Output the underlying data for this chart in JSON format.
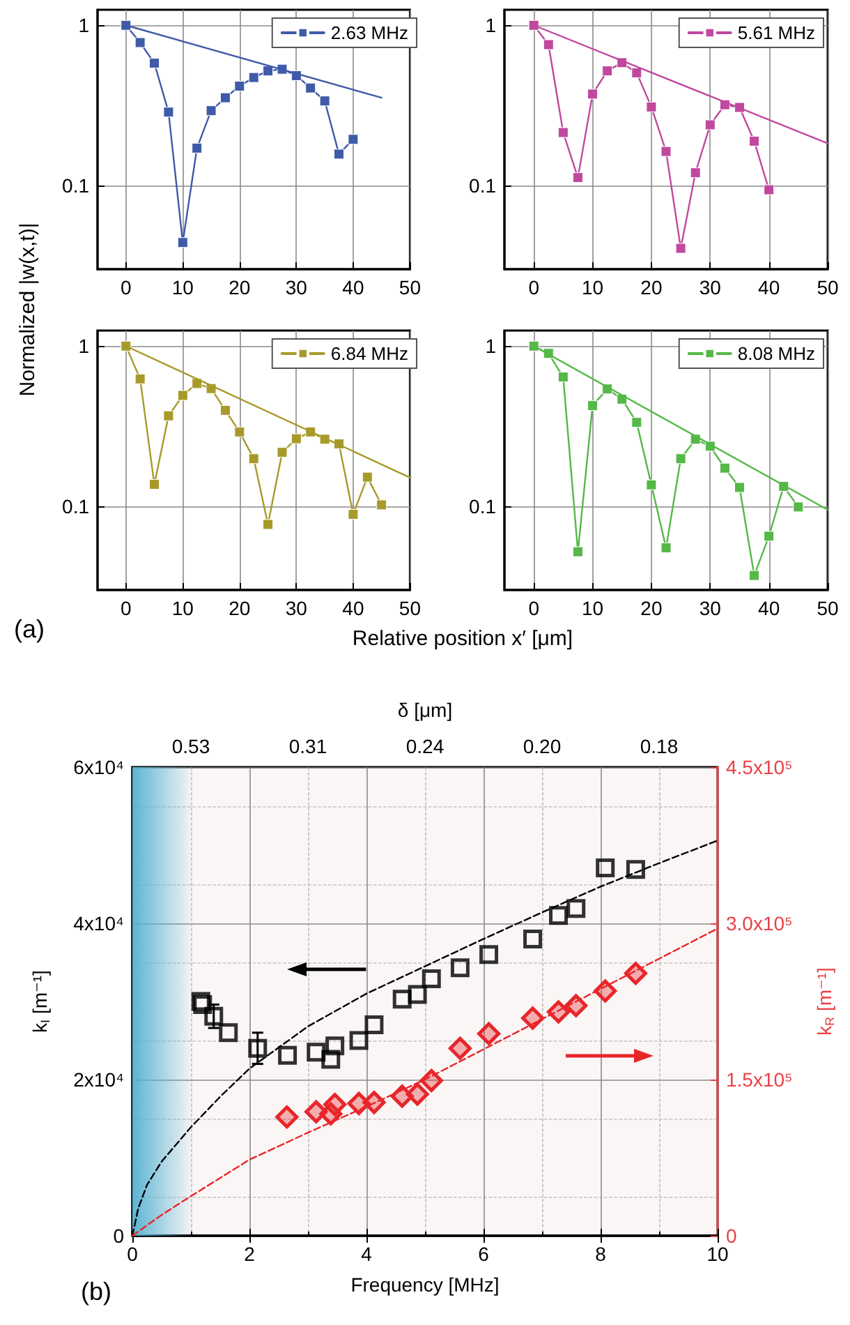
{
  "chart_data": [
    {
      "type": "line",
      "ylabel": "Normalized |w(x,t)|",
      "xlabel": "Relative position x′ [μm]",
      "xlim": [
        -5,
        50
      ],
      "xticks": [
        0,
        10,
        20,
        30,
        40,
        50
      ],
      "ylim": [
        0.03,
        1.25
      ],
      "yticks": [
        0.1,
        1
      ],
      "log": "y",
      "grid": true,
      "legend": "top right",
      "marker": "square",
      "line_style": "solid",
      "series": [
        {
          "name": "2.63 MHz",
          "color": "#3f5aa8",
          "x": [
            0,
            2.5,
            5,
            7.5,
            10,
            12.5,
            15,
            17.5,
            20,
            22.5,
            25,
            27.5,
            30,
            32.5,
            35,
            37.5,
            40
          ],
          "values": [
            1,
            0.78,
            0.58,
            0.287,
            0.044,
            0.171,
            0.293,
            0.353,
            0.417,
            0.472,
            0.519,
            0.532,
            0.485,
            0.406,
            0.337,
            0.157,
            0.194
          ]
        },
        {
          "color": "#3f5aa8",
          "marker": "none",
          "x": [
            0,
            45
          ],
          "values": [
            1,
            0.353
          ]
        }
      ]
    },
    {
      "type": "line",
      "xlim": [
        -5,
        50
      ],
      "xticks": [
        0,
        10,
        20,
        30,
        40,
        50
      ],
      "ylim": [
        0.03,
        1.25
      ],
      "yticks": [
        0.1,
        1
      ],
      "log": "y",
      "grid": true,
      "legend": "top right",
      "marker": "square",
      "line_style": "solid",
      "series": [
        {
          "name": "5.61 MHz",
          "color": "#c0489e",
          "x": [
            0,
            2.5,
            5,
            7.5,
            10,
            12.5,
            15,
            17.5,
            20,
            22.5,
            25,
            27.5,
            30,
            32.5,
            35,
            37.5,
            40
          ],
          "values": [
            1,
            0.757,
            0.214,
            0.112,
            0.372,
            0.519,
            0.584,
            0.505,
            0.309,
            0.163,
            0.0405,
            0.12,
            0.239,
            0.319,
            0.307,
            0.189,
            0.094
          ]
        },
        {
          "color": "#c0489e",
          "marker": "none",
          "x": [
            0,
            50
          ],
          "values": [
            1,
            0.183
          ]
        }
      ]
    },
    {
      "type": "line",
      "xlim": [
        -5,
        50
      ],
      "xticks": [
        0,
        10,
        20,
        30,
        40,
        50
      ],
      "ylim": [
        0.03,
        1.25
      ],
      "yticks": [
        0.1,
        1
      ],
      "log": "y",
      "grid": true,
      "legend": "top right",
      "marker": "square",
      "line_style": "solid",
      "annotations": [
        "(a)"
      ],
      "series": [
        {
          "name": "6.84 MHz",
          "color": "#a89a2a",
          "x": [
            0,
            2.5,
            5,
            7.5,
            10,
            12.5,
            15,
            17.5,
            20,
            22.5,
            25,
            27.5,
            30,
            32.5,
            35,
            37.5,
            40,
            42.5,
            45
          ],
          "values": [
            1,
            0.624,
            0.137,
            0.367,
            0.492,
            0.584,
            0.543,
            0.397,
            0.291,
            0.198,
            0.077,
            0.217,
            0.264,
            0.291,
            0.262,
            0.245,
            0.089,
            0.152,
            0.102
          ]
        },
        {
          "color": "#a89a2a",
          "marker": "none",
          "x": [
            0,
            50
          ],
          "values": [
            1,
            0.151
          ]
        }
      ]
    },
    {
      "type": "line",
      "xlim": [
        -5,
        50
      ],
      "xticks": [
        0,
        10,
        20,
        30,
        40,
        50
      ],
      "ylim": [
        0.03,
        1.25
      ],
      "yticks": [
        0.1,
        1
      ],
      "log": "y",
      "grid": true,
      "legend": "top right",
      "marker": "square",
      "line_style": "solid",
      "series": [
        {
          "name": "8.08 MHz",
          "color": "#55b848",
          "x": [
            0,
            2.5,
            5,
            7.5,
            10,
            12.5,
            15,
            17.5,
            20,
            22.5,
            25,
            27.5,
            30,
            32.5,
            35,
            37.5,
            40,
            42.5,
            45
          ],
          "values": [
            1,
            0.9,
            0.641,
            0.052,
            0.425,
            0.54,
            0.466,
            0.334,
            0.136,
            0.055,
            0.198,
            0.262,
            0.237,
            0.173,
            0.131,
            0.037,
            0.065,
            0.133,
            0.099
          ]
        },
        {
          "color": "#55b848",
          "marker": "none",
          "x": [
            0,
            50
          ],
          "values": [
            1,
            0.095
          ]
        }
      ]
    },
    {
      "type": "scatter",
      "xlabel": "Frequency [MHz]",
      "ylabel": "k$_{I}$ [m⁻¹]",
      "y2label": "k$_{R}$ [m⁻¹]",
      "x2label": "δ [μm]",
      "xlim": [
        0,
        10
      ],
      "xticks": [
        0,
        2,
        4,
        6,
        8,
        10
      ],
      "ylim": [
        0,
        60000
      ],
      "yticks": [
        0,
        {
          "value": 20000,
          "label": "2x10⁴"
        },
        {
          "value": 40000,
          "label": "4x10⁴"
        },
        {
          "value": 60000,
          "label": "6x10⁴"
        }
      ],
      "y2lim": [
        0,
        450000
      ],
      "y2ticks": [
        0,
        {
          "value": 150000,
          "label": "1.5x10⁵"
        },
        {
          "value": 300000,
          "label": "3.0x10⁵"
        },
        {
          "value": 450000,
          "label": "4.5x10⁵"
        }
      ],
      "grid": true,
      "bands": [
        {
          "axis": "x",
          "from": 0,
          "to": 1,
          "color": "#5ab4d3"
        }
      ],
      "annotations": [
        "(b)",
        "0.53",
        "0.31",
        "0.24",
        "0.20",
        "0.18"
      ],
      "series": [
        {
          "color": "#000000",
          "marker": "square",
          "x": [
            1.17,
            1.2,
            1.39,
            1.64,
            2.14,
            2.65,
            3.14,
            3.39,
            3.46,
            3.87,
            4.13,
            4.61,
            4.87,
            5.11,
            5.6,
            6.09,
            6.84,
            7.28,
            7.58,
            8.08,
            8.6
          ],
          "values": [
            30000,
            29600,
            28100,
            26000,
            24000,
            23100,
            23500,
            22600,
            24300,
            25000,
            27000,
            30300,
            30900,
            32900,
            34300,
            36000,
            38000,
            41000,
            41900,
            47100,
            46900
          ],
          "errors": [
            null,
            null,
            1500,
            null,
            2000,
            null,
            null,
            null,
            null,
            null,
            null,
            null,
            null,
            null,
            null,
            null,
            null,
            null,
            null,
            null,
            null
          ]
        },
        {
          "axis": "y2",
          "color": "#e8262a",
          "marker": "diamond",
          "x": [
            2.64,
            3.14,
            3.39,
            3.46,
            3.87,
            4.13,
            4.61,
            4.87,
            5.11,
            5.6,
            6.09,
            6.84,
            7.28,
            7.58,
            8.08,
            8.6
          ],
          "values": [
            114000,
            119000,
            117000,
            126000,
            127000,
            128000,
            134000,
            136000,
            149000,
            180000,
            194000,
            209000,
            215000,
            221000,
            235000,
            252000
          ]
        },
        {
          "type": "line",
          "color": "#000000",
          "line_style": "dashed",
          "marker": "none",
          "x": [
            0,
            0.1,
            0.25,
            0.5,
            1,
            1.5,
            2,
            3,
            4,
            5,
            6,
            7,
            8,
            9,
            10
          ],
          "values": [
            0,
            3500,
            6500,
            9500,
            13900,
            17800,
            21400,
            26800,
            31000,
            34500,
            38000,
            41400,
            44700,
            47700,
            50600
          ]
        },
        {
          "type": "line",
          "axis": "y2",
          "color": "#e8262a",
          "line_style": "dashed",
          "marker": "none",
          "x": [
            0,
            0.5,
            1,
            2,
            3,
            4,
            5,
            6,
            7,
            8,
            9,
            10
          ],
          "values": [
            0,
            20000,
            38000,
            73000,
            99000,
            124000,
            150000,
            179000,
            208000,
            237000,
            266000,
            295000
          ]
        }
      ]
    }
  ]
}
